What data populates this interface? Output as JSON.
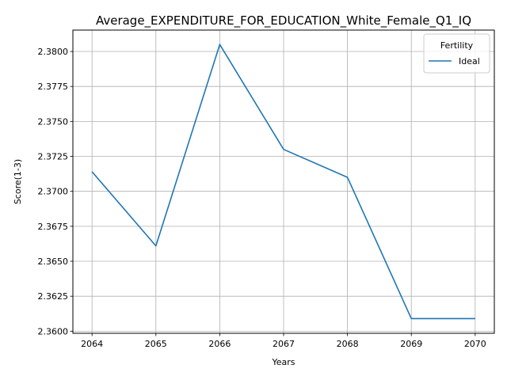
{
  "chart_data": {
    "type": "line",
    "title": "Average_EXPENDITURE_FOR_EDUCATION_White_Female_Q1_IQ",
    "xlabel": "Years",
    "ylabel": "Score(1-3)",
    "x": [
      2064,
      2065,
      2066,
      2067,
      2068,
      2069,
      2070
    ],
    "x_ticks": [
      "2064",
      "2065",
      "2066",
      "2067",
      "2068",
      "2069",
      "2070"
    ],
    "y_ticks": [
      "2.3600",
      "2.3625",
      "2.3650",
      "2.3675",
      "2.3700",
      "2.3725",
      "2.3750",
      "2.3775",
      "2.3800"
    ],
    "xlim": [
      2063.7,
      2070.3
    ],
    "ylim": [
      2.35985,
      2.38153
    ],
    "grid": true,
    "legend": {
      "title": "Fertility",
      "position": "top-right"
    },
    "series": [
      {
        "name": "Ideal",
        "color": "#1f77b4",
        "values": [
          2.3714,
          2.3661,
          2.3805,
          2.373,
          2.371,
          2.3609,
          2.3609
        ]
      }
    ]
  }
}
